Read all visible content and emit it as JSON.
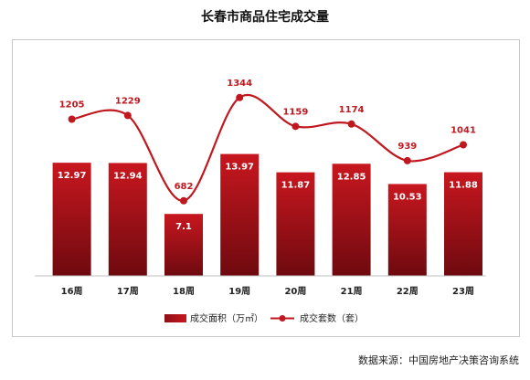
{
  "title": "长春市商品住宅成交量",
  "source": "数据来源：中国房地产决策咨询系统",
  "chart_data": {
    "type": "bar",
    "categories": [
      "16周",
      "17周",
      "18周",
      "19周",
      "20周",
      "21周",
      "22周",
      "23周"
    ],
    "series": [
      {
        "name": "成交面积（万㎡）",
        "type": "bar",
        "values": [
          12.97,
          12.94,
          7.1,
          13.97,
          11.87,
          12.85,
          10.53,
          11.88
        ]
      },
      {
        "name": "成交套数（套）",
        "type": "line",
        "values": [
          1205,
          1229,
          682,
          1344,
          1159,
          1174,
          939,
          1041
        ]
      }
    ],
    "bar_labels": [
      "12.97",
      "12.94",
      "7.1",
      "13.97",
      "11.87",
      "12.85",
      "10.53",
      "11.88"
    ],
    "line_labels": [
      "1205",
      "1229",
      "682",
      "1344",
      "1159",
      "1174",
      "939",
      "1041"
    ],
    "legend_position": "bottom",
    "colors": {
      "bar": "#c0181f",
      "line": "#c0181f"
    }
  }
}
